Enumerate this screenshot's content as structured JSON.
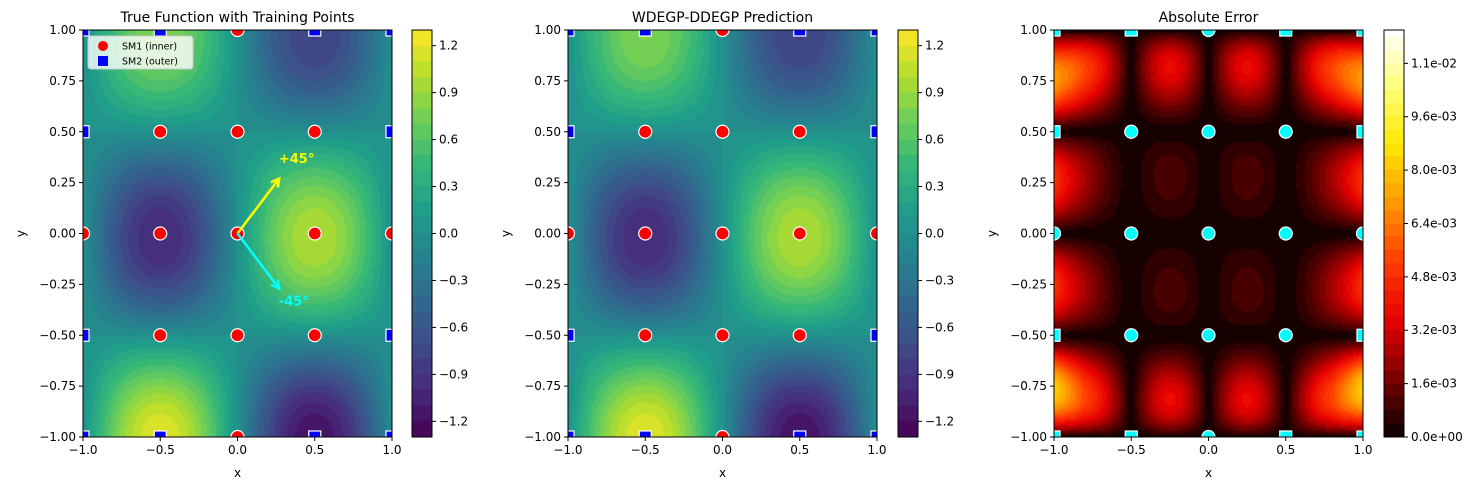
{
  "chart_data": [
    {
      "type": "heatmap",
      "title": "True Function with Training Points",
      "xlabel": "x",
      "ylabel": "y",
      "xlim": [
        -1,
        1
      ],
      "ylim": [
        -1,
        1
      ],
      "xticks": [
        "-1.0",
        "-0.5",
        "0.0",
        "0.5",
        "1.0"
      ],
      "yticks": [
        "-1.00",
        "-0.75",
        "-0.50",
        "-0.25",
        "0.00",
        "0.25",
        "0.50",
        "0.75",
        "1.00"
      ],
      "colormap": "viridis",
      "field": "true",
      "clim": [
        -1.3,
        1.3
      ],
      "level_step": 0.1,
      "colorbar_ticks": [
        -1.2,
        -0.9,
        -0.6,
        -0.3,
        0.0,
        0.3,
        0.6,
        0.9,
        1.2
      ],
      "colorbar_labels": [
        "-1.2",
        "-0.9",
        "-0.6",
        "-0.3",
        "0.0",
        "0.3",
        "0.6",
        "0.9",
        "1.2"
      ],
      "legend": {
        "placement": "upper-left",
        "entries": [
          {
            "label": "SM1 (inner)",
            "marker": "circle",
            "color": "#ff0000"
          },
          {
            "label": "SM2 (outer)",
            "marker": "square",
            "color": "#0000ff"
          }
        ]
      },
      "annotations": [
        {
          "text": "+45°",
          "color": "#ffff00",
          "arrow_from": [
            0,
            0
          ],
          "arrow_to": [
            0.27,
            0.27
          ],
          "text_at": [
            0.3,
            0.37
          ]
        },
        {
          "text": "-45°",
          "color": "#00ffff",
          "arrow_from": [
            0,
            0
          ],
          "arrow_to": [
            0.27,
            -0.27
          ],
          "text_at": [
            0.3,
            -0.33
          ]
        }
      ],
      "sm1_color": "#ff0000",
      "sm2_color": "#0000ff",
      "show_legend": true
    },
    {
      "type": "heatmap",
      "title": "WDEGP-DDEGP Prediction",
      "xlabel": "x",
      "ylabel": "y",
      "xlim": [
        -1,
        1
      ],
      "ylim": [
        -1,
        1
      ],
      "xticks": [
        "-1.0",
        "-0.5",
        "0.0",
        "0.5",
        "1.0"
      ],
      "yticks": [
        "-1.00",
        "-0.75",
        "-0.50",
        "-0.25",
        "0.00",
        "0.25",
        "0.50",
        "0.75",
        "1.00"
      ],
      "colormap": "viridis",
      "field": "true",
      "clim": [
        -1.3,
        1.3
      ],
      "level_step": 0.1,
      "colorbar_ticks": [
        -1.2,
        -0.9,
        -0.6,
        -0.3,
        0.0,
        0.3,
        0.6,
        0.9,
        1.2
      ],
      "colorbar_labels": [
        "-1.2",
        "-0.9",
        "-0.6",
        "-0.3",
        "0.0",
        "0.3",
        "0.6",
        "0.9",
        "1.2"
      ],
      "sm1_color": "#ff0000",
      "sm2_color": "#0000ff",
      "show_legend": false
    },
    {
      "type": "heatmap",
      "title": "Absolute Error",
      "xlabel": "x",
      "ylabel": "y",
      "xlim": [
        -1,
        1
      ],
      "ylim": [
        -1,
        1
      ],
      "xticks": [
        "-1.0",
        "-0.5",
        "0.0",
        "0.5",
        "1.0"
      ],
      "yticks": [
        "-1.00",
        "-0.75",
        "-0.50",
        "-0.25",
        "0.00",
        "0.25",
        "0.50",
        "0.75",
        "1.00"
      ],
      "colormap": "hot",
      "field": "error",
      "clim": [
        0,
        0.0122
      ],
      "level_step": 0.0004,
      "colorbar_ticks": [
        0,
        0.0016,
        0.0032,
        0.0048,
        0.0064,
        0.008,
        0.0096,
        0.0112
      ],
      "colorbar_labels": [
        "0.0e+00",
        "1.6e-03",
        "3.2e-03",
        "4.8e-03",
        "6.4e-03",
        "8.0e-03",
        "9.6e-03",
        "1.1e-02"
      ],
      "sm1_color": "#00ffff",
      "sm2_color": "#00ffff",
      "show_legend": false
    }
  ],
  "training_points": {
    "sm1": [
      [
        -0.5,
        -0.5
      ],
      [
        0,
        -0.5
      ],
      [
        0.5,
        -0.5
      ],
      [
        -0.5,
        0
      ],
      [
        0,
        0
      ],
      [
        0.5,
        0
      ],
      [
        -0.5,
        0.5
      ],
      [
        0,
        0.5
      ],
      [
        0.5,
        0.5
      ],
      [
        0,
        1
      ],
      [
        0,
        -1
      ],
      [
        -1,
        0
      ],
      [
        1,
        0
      ]
    ],
    "sm2": [
      [
        -1,
        -1
      ],
      [
        -0.5,
        -1
      ],
      [
        0.5,
        -1
      ],
      [
        1,
        -1
      ],
      [
        -1,
        1
      ],
      [
        -0.5,
        1
      ],
      [
        0.5,
        1
      ],
      [
        1,
        1
      ],
      [
        -1,
        -0.5
      ],
      [
        1,
        -0.5
      ],
      [
        -1,
        0.5
      ],
      [
        1,
        0.5
      ]
    ]
  }
}
